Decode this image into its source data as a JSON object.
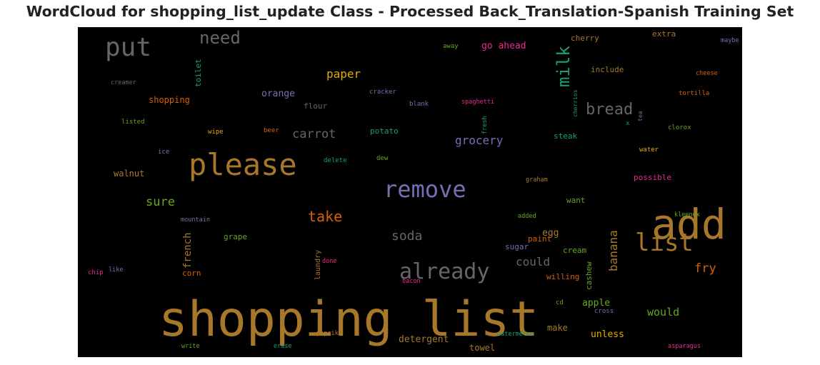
{
  "chart_data": {
    "type": "wordcloud",
    "title": "WordCloud for shopping_list_update Class - Processed Back_Translation-Spanish Training Set",
    "background": "#000000",
    "words": [
      {
        "text": "shopping list",
        "color": "#a8782a"
      },
      {
        "text": "add",
        "color": "#a8782a"
      },
      {
        "text": "please",
        "color": "#a8782a"
      },
      {
        "text": "remove",
        "color": "#7570b3"
      },
      {
        "text": "already",
        "color": "#666666"
      },
      {
        "text": "list",
        "color": "#a8782a"
      },
      {
        "text": "put",
        "color": "#666666"
      },
      {
        "text": "milk",
        "color": "#1b9e77"
      },
      {
        "text": "need",
        "color": "#666666"
      },
      {
        "text": "bread",
        "color": "#666666"
      },
      {
        "text": "take",
        "color": "#d95f02"
      },
      {
        "text": "carrot",
        "color": "#666666"
      },
      {
        "text": "soda",
        "color": "#666666"
      },
      {
        "text": "banana",
        "color": "#a8782a"
      },
      {
        "text": "sure",
        "color": "#66a61e"
      },
      {
        "text": "paper",
        "color": "#e6ab02"
      },
      {
        "text": "grocery",
        "color": "#7570b3"
      },
      {
        "text": "fry",
        "color": "#d95f02"
      },
      {
        "text": "could",
        "color": "#666666"
      },
      {
        "text": "french",
        "color": "#a8782a"
      },
      {
        "text": "would",
        "color": "#66a61e"
      },
      {
        "text": "go ahead",
        "color": "#e7298a"
      },
      {
        "text": "orange",
        "color": "#7570b3"
      },
      {
        "text": "unless",
        "color": "#e6ab02"
      },
      {
        "text": "detergent",
        "color": "#a8782a"
      },
      {
        "text": "apple",
        "color": "#66a61e"
      },
      {
        "text": "egg",
        "color": "#a8782a"
      },
      {
        "text": "make",
        "color": "#a8782a"
      },
      {
        "text": "towel",
        "color": "#a8782a"
      },
      {
        "text": "walnut",
        "color": "#a8782a"
      },
      {
        "text": "shopping",
        "color": "#d95f02"
      },
      {
        "text": "toilet",
        "color": "#1b9e77"
      },
      {
        "text": "flour",
        "color": "#666666"
      },
      {
        "text": "potato",
        "color": "#1b9e77"
      },
      {
        "text": "steak",
        "color": "#1b9e77"
      },
      {
        "text": "cherry",
        "color": "#a8782a"
      },
      {
        "text": "include",
        "color": "#a8782a"
      },
      {
        "text": "extra",
        "color": "#a8782a"
      },
      {
        "text": "grape",
        "color": "#66a61e"
      },
      {
        "text": "laundry",
        "color": "#a8782a"
      },
      {
        "text": "corn",
        "color": "#d95f02"
      },
      {
        "text": "sugar",
        "color": "#7570b3"
      },
      {
        "text": "cream",
        "color": "#66a61e"
      },
      {
        "text": "cashew",
        "color": "#66a61e"
      },
      {
        "text": "want",
        "color": "#66a61e"
      },
      {
        "text": "possible",
        "color": "#e7298a"
      },
      {
        "text": "willing",
        "color": "#d95f02"
      },
      {
        "text": "paint",
        "color": "#d95f02"
      },
      {
        "text": "creamer",
        "color": "#666666"
      },
      {
        "text": "listed",
        "color": "#66a61e"
      },
      {
        "text": "wipe",
        "color": "#e6ab02"
      },
      {
        "text": "beer",
        "color": "#d95f02"
      },
      {
        "text": "ice",
        "color": "#7570b3"
      },
      {
        "text": "delete",
        "color": "#1b9e77"
      },
      {
        "text": "dew",
        "color": "#66a61e"
      },
      {
        "text": "cracker",
        "color": "#7570b3"
      },
      {
        "text": "blank",
        "color": "#7570b3"
      },
      {
        "text": "spaghetti",
        "color": "#e7298a"
      },
      {
        "text": "fresh",
        "color": "#1b9e77"
      },
      {
        "text": "cherrios",
        "color": "#1b9e77"
      },
      {
        "text": "tea",
        "color": "#7570b3"
      },
      {
        "text": "x",
        "color": "#1b9e77"
      },
      {
        "text": "clorox",
        "color": "#66a61e"
      },
      {
        "text": "away",
        "color": "#66a61e"
      },
      {
        "text": "maybe",
        "color": "#7570b3"
      },
      {
        "text": "cheese",
        "color": "#d95f02"
      },
      {
        "text": "tortilla",
        "color": "#d95f02"
      },
      {
        "text": "water",
        "color": "#e6ab02"
      },
      {
        "text": "graham",
        "color": "#a8782a"
      },
      {
        "text": "added",
        "color": "#66a61e"
      },
      {
        "text": "kleenex",
        "color": "#66a61e"
      },
      {
        "text": "mountain",
        "color": "#7570b3"
      },
      {
        "text": "done",
        "color": "#e7298a"
      },
      {
        "text": "chip",
        "color": "#e7298a"
      },
      {
        "text": "like",
        "color": "#7570b3"
      },
      {
        "text": "bacon",
        "color": "#e7298a"
      },
      {
        "text": "cd",
        "color": "#66a61e"
      },
      {
        "text": "cross",
        "color": "#7570b3"
      },
      {
        "text": "paprika",
        "color": "#a8782a"
      },
      {
        "text": "watermelon",
        "color": "#1b9e77"
      },
      {
        "text": "write",
        "color": "#66a61e"
      },
      {
        "text": "erase",
        "color": "#1b9e77"
      },
      {
        "text": "asparagus",
        "color": "#e7298a"
      }
    ]
  }
}
